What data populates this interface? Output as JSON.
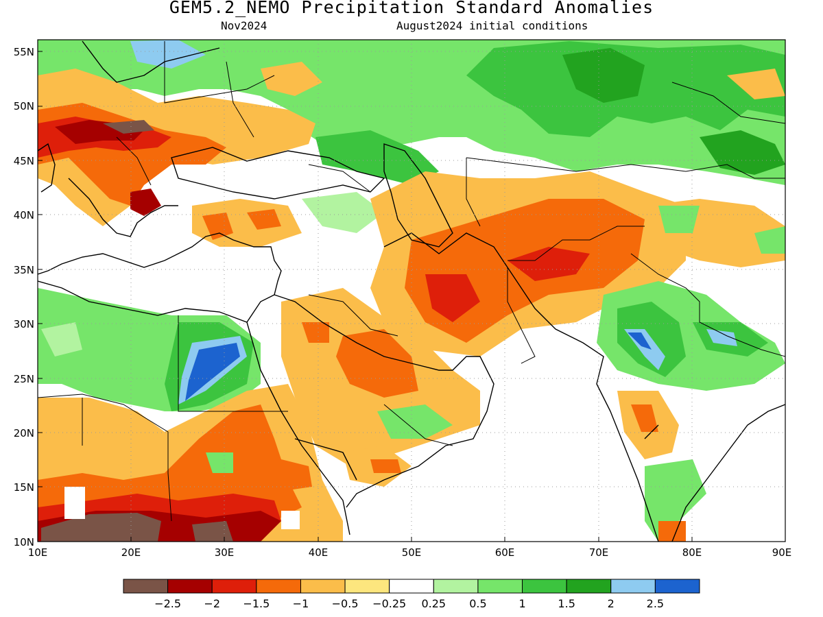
{
  "title": "GEM5.2_NEMO Precipitation Standard Anomalies",
  "subtitle_left": "Nov2024",
  "subtitle_right": "August2024 initial conditions",
  "axes": {
    "lat_labels": [
      "55N",
      "50N",
      "45N",
      "40N",
      "35N",
      "30N",
      "25N",
      "20N",
      "15N",
      "10N"
    ],
    "lon_labels": [
      "10E",
      "20E",
      "30E",
      "40E",
      "50E",
      "60E",
      "70E",
      "80E",
      "90E"
    ]
  },
  "colorbar": {
    "colors": [
      "#7a5447",
      "#a50000",
      "#de1f0a",
      "#f56a0a",
      "#fbbd4a",
      "#fde67e",
      "#ffffff",
      "#b2f3a0",
      "#76e56a",
      "#3cc43f",
      "#22a31f",
      "#8ecbf0",
      "#1c63cf"
    ],
    "labels": [
      "−2.5",
      "−2",
      "−1.5",
      "−1",
      "−0.5",
      "−0.25",
      "0.25",
      "0.5",
      "1",
      "1.5",
      "2",
      "2.5"
    ]
  },
  "map": {
    "extent": {
      "lon": [
        10,
        90
      ],
      "lat": [
        10,
        56
      ]
    },
    "grid": true,
    "palette": {
      "land_white": "#ffffff",
      "light_green": "#b2f3a0",
      "green": "#76e56a",
      "mid_green": "#3cc43f",
      "dark_green": "#22a31f",
      "light_blue": "#8ecbf0",
      "blue": "#1c63cf",
      "yellow": "#fde67e",
      "light_orange": "#fbbd4a",
      "orange": "#f56a0a",
      "red": "#de1f0a",
      "dark_red": "#a50000",
      "brown": "#7a5447"
    }
  }
}
